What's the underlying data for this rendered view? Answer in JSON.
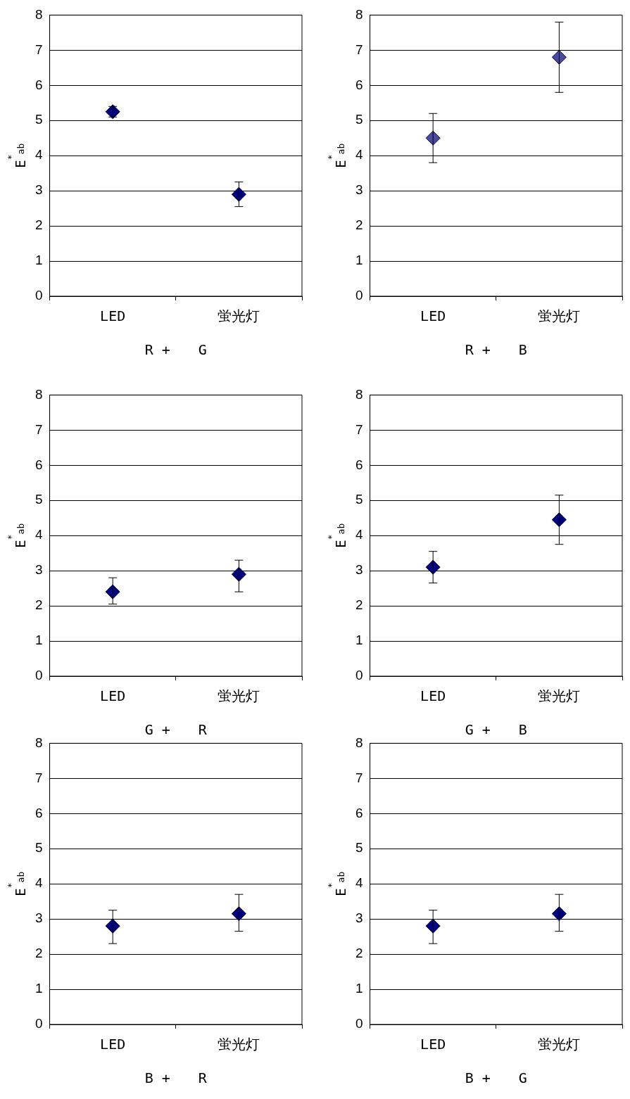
{
  "chart_data": [
    {
      "type": "scatter",
      "categories": [
        "LED",
        "蛍光灯"
      ],
      "values": [
        5.25,
        2.9
      ],
      "errors": [
        [
          5.1,
          5.4
        ],
        [
          2.55,
          3.25
        ]
      ],
      "color": "#000080",
      "ylim": [
        0,
        8
      ],
      "yticks": [
        0,
        1,
        2,
        3,
        4,
        5,
        6,
        7,
        8
      ],
      "grid": "y",
      "marker": "diamond",
      "xlabel": "R +　　G",
      "ylabel": "E$^{*}$$_{ab}$"
    },
    {
      "type": "scatter",
      "categories": [
        "LED",
        "蛍光灯"
      ],
      "values": [
        4.5,
        6.8
      ],
      "errors": [
        [
          3.8,
          5.2
        ],
        [
          5.8,
          7.8
        ]
      ],
      "color": "#4a4aa0",
      "ylim": [
        0,
        8
      ],
      "yticks": [
        0,
        1,
        2,
        3,
        4,
        5,
        6,
        7,
        8
      ],
      "grid": "y",
      "marker": "diamond",
      "xlabel": "R +　　B",
      "ylabel": "E$^{*}$$_{ab}$"
    },
    {
      "type": "scatter",
      "categories": [
        "LED",
        "蛍光灯"
      ],
      "values": [
        2.4,
        2.9
      ],
      "errors": [
        [
          2.05,
          2.8
        ],
        [
          2.4,
          3.3
        ]
      ],
      "color": "#000080",
      "ylim": [
        0,
        8
      ],
      "yticks": [
        0,
        1,
        2,
        3,
        4,
        5,
        6,
        7,
        8
      ],
      "grid": "y",
      "marker": "diamond",
      "xlabel": "G +　　R",
      "ylabel": "E$^{*}$$_{ab}$"
    },
    {
      "type": "scatter",
      "categories": [
        "LED",
        "蛍光灯"
      ],
      "values": [
        3.1,
        4.45
      ],
      "errors": [
        [
          2.65,
          3.55
        ],
        [
          3.75,
          5.15
        ]
      ],
      "color": "#000080",
      "ylim": [
        0,
        8
      ],
      "yticks": [
        0,
        1,
        2,
        3,
        4,
        5,
        6,
        7,
        8
      ],
      "grid": "y",
      "marker": "diamond",
      "xlabel": "G +　　B",
      "ylabel": "E$^{*}$$_{ab}$"
    },
    {
      "type": "scatter",
      "categories": [
        "LED",
        "蛍光灯"
      ],
      "values": [
        2.8,
        3.15
      ],
      "errors": [
        [
          2.3,
          3.25
        ],
        [
          2.65,
          3.7
        ]
      ],
      "color": "#000080",
      "ylim": [
        0,
        8
      ],
      "yticks": [
        0,
        1,
        2,
        3,
        4,
        5,
        6,
        7,
        8
      ],
      "grid": "y",
      "marker": "diamond",
      "xlabel": "B +　　R",
      "ylabel": "E$^{*}$$_{ab}$"
    },
    {
      "type": "scatter",
      "categories": [
        "LED",
        "蛍光灯"
      ],
      "values": [
        2.8,
        3.15
      ],
      "errors": [
        [
          2.3,
          3.25
        ],
        [
          2.65,
          3.7
        ]
      ],
      "color": "#000080",
      "ylim": [
        0,
        8
      ],
      "yticks": [
        0,
        1,
        2,
        3,
        4,
        5,
        6,
        7,
        8
      ],
      "grid": "y",
      "marker": "diamond",
      "xlabel": "B +　　G",
      "ylabel": "E$^{*}$$_{ab}$"
    }
  ]
}
